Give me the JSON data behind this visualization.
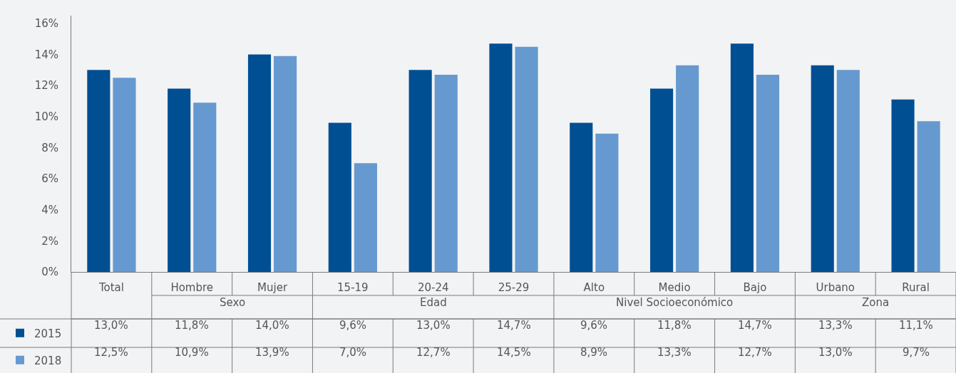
{
  "chart_data": {
    "type": "bar",
    "categories": [
      "Total",
      "Hombre",
      "Mujer",
      "15-19",
      "20-24",
      "25-29",
      "Alto",
      "Medio",
      "Bajo",
      "Urbano",
      "Rural"
    ],
    "series": [
      {
        "name": "2015",
        "color": "#004f93",
        "values": [
          13.0,
          11.8,
          14.0,
          9.6,
          13.0,
          14.7,
          9.6,
          11.8,
          14.7,
          13.3,
          11.1
        ],
        "value_labels": [
          "13,0%",
          "11,8%",
          "14,0%",
          "9,6%",
          "13,0%",
          "14,7%",
          "9,6%",
          "11,8%",
          "14,7%",
          "13,3%",
          "11,1%"
        ]
      },
      {
        "name": "2018",
        "color": "#6699cf",
        "values": [
          12.5,
          10.9,
          13.9,
          7.0,
          12.7,
          14.5,
          8.9,
          13.3,
          12.7,
          13.0,
          9.7
        ],
        "value_labels": [
          "12,5%",
          "10,9%",
          "13,9%",
          "7,0%",
          "12,7%",
          "14,5%",
          "8,9%",
          "13,3%",
          "12,7%",
          "13,0%",
          "9,7%"
        ]
      }
    ],
    "annotations": [
      "Sexo",
      "Edad",
      "Nivel Socioeconómico",
      "Zona"
    ],
    "ylim": [
      0,
      16.5
    ],
    "yticks": [
      {
        "value": 0,
        "label": "0%"
      },
      {
        "value": 2,
        "label": "2%"
      },
      {
        "value": 4,
        "label": "4%"
      },
      {
        "value": 6,
        "label": "6%"
      },
      {
        "value": 8,
        "label": "8%"
      },
      {
        "value": 10,
        "label": "10%"
      },
      {
        "value": 12,
        "label": "12%"
      },
      {
        "value": 14,
        "label": "14%"
      },
      {
        "value": 16,
        "label": "16%"
      }
    ],
    "grid": false,
    "legend": "bottom"
  }
}
